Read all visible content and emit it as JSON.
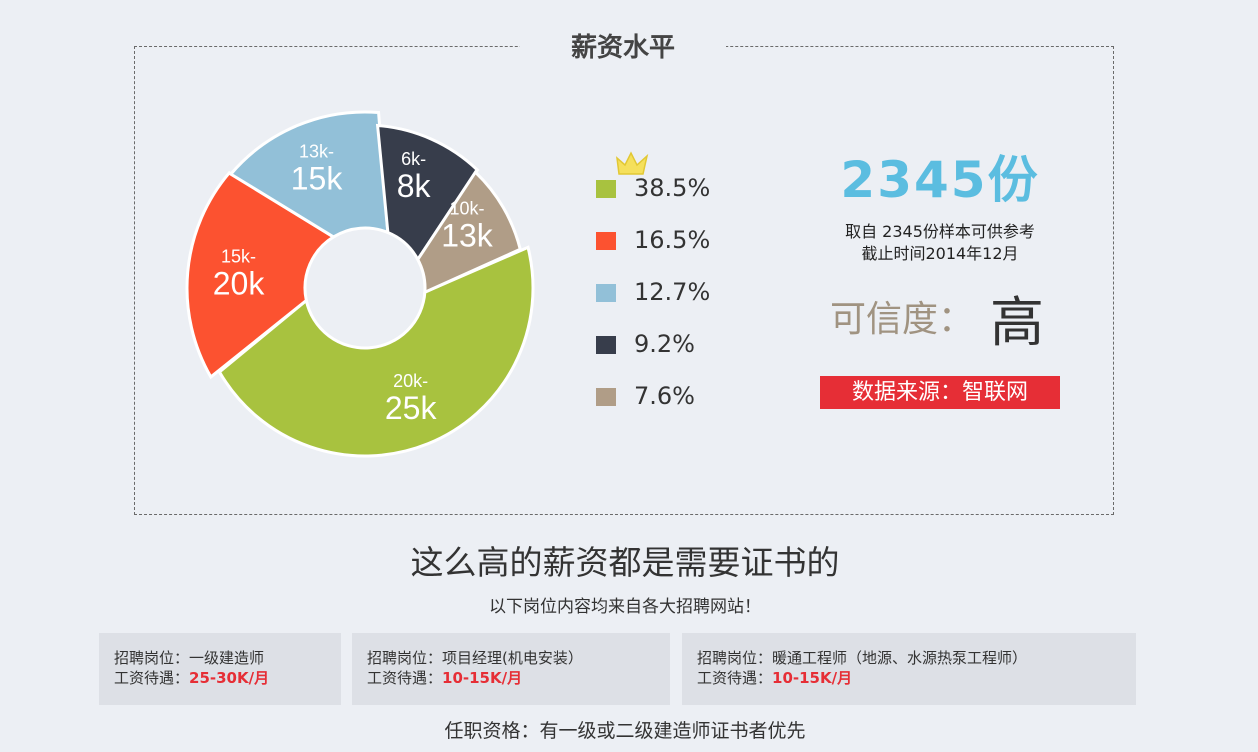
{
  "panel": {
    "title": "薪资水平"
  },
  "chart_data": {
    "type": "pie",
    "title": "薪资水平",
    "slices": [
      {
        "label": "20k-25k",
        "range": "20k-",
        "value_label": "25k",
        "percent": 38.5,
        "color": "#a8c23f"
      },
      {
        "label": "15k-20k",
        "range": "15k-",
        "value_label": "20k",
        "percent": 16.5,
        "color": "#fc5230"
      },
      {
        "label": "13k-15k",
        "range": "13k-",
        "value_label": "15k",
        "percent": 12.7,
        "color": "#92c0d8"
      },
      {
        "label": "6k-8k",
        "range": "6k-",
        "value_label": "8k",
        "percent": 9.2,
        "color": "#373d4b"
      },
      {
        "label": "10k-13k",
        "range": "10k-",
        "value_label": "13k",
        "percent": 7.6,
        "color": "#b09d87"
      }
    ],
    "legend": [
      "38.5%",
      "16.5%",
      "12.7%",
      "9.2%",
      "7.6%"
    ],
    "legend_placement": "right"
  },
  "stats": {
    "count": "2345份",
    "sample_text": "取自 2345份样本可供参考",
    "cutoff_text": "截止时间2014年12月",
    "credibility_label": "可信度：",
    "credibility_value": "高",
    "source": "数据来源：智联网"
  },
  "headline": "这么高的薪资都是需要证书的",
  "subline": "以下岗位内容均来自各大招聘网站！",
  "jobs": [
    {
      "position": "招聘岗位：一级建造师",
      "salary_label": "工资待遇：",
      "salary": "25-30K/月"
    },
    {
      "position": "招聘岗位：项目经理(机电安装）",
      "salary_label": "工资待遇：",
      "salary": "10-15K/月"
    },
    {
      "position": "招聘岗位：暖通工程师（地源、水源热泵工程师）",
      "salary_label": "工资待遇：",
      "salary": "10-15K/月"
    }
  ],
  "footer": "任职资格：有一级或二级建造师证书者优先"
}
